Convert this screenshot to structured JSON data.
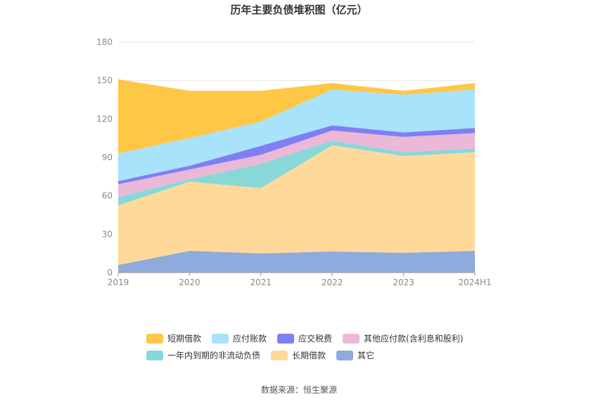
{
  "chart_data": {
    "type": "area",
    "stacked": true,
    "title": "历年主要负债堆积图（亿元）",
    "categories": [
      "2019",
      "2020",
      "2021",
      "2022",
      "2023",
      "2024H1"
    ],
    "ylim": [
      0,
      180
    ],
    "yticks": [
      "0",
      "30",
      "60",
      "90",
      "120",
      "150",
      "180"
    ],
    "grid": true,
    "legend_position": "bottom",
    "series": [
      {
        "name": "其它",
        "color": "#8faadc",
        "values": [
          6,
          17,
          15,
          16.5,
          15.5,
          17
        ]
      },
      {
        "name": "长期借款",
        "color": "#ffd99a",
        "values": [
          46.5,
          54,
          51,
          83,
          75.5,
          77
        ]
      },
      {
        "name": "一年内到期的非流动负债",
        "color": "#88d8d8",
        "values": [
          6.5,
          2,
          19,
          3.5,
          3,
          3
        ]
      },
      {
        "name": "其他应付款(含利息和股利)",
        "color": "#ebb8d8",
        "values": [
          10,
          7.5,
          7,
          8,
          12,
          12
        ]
      },
      {
        "name": "应交税费",
        "color": "#7f7ff2",
        "values": [
          2.5,
          3,
          7,
          4,
          3.5,
          4
        ]
      },
      {
        "name": "应付账款",
        "color": "#a8e2fb",
        "values": [
          21.5,
          21.5,
          19,
          28,
          29.5,
          30
        ]
      },
      {
        "name": "短期借款",
        "color": "#ffc746",
        "values": [
          58,
          37,
          24,
          5,
          3,
          5
        ]
      }
    ],
    "legend_order": [
      "短期借款",
      "应付账款",
      "应交税费",
      "其他应付款(含利息和股利)",
      "一年内到期的非流动负债",
      "长期借款",
      "其它"
    ],
    "source": "数据来源：恒生聚源"
  }
}
